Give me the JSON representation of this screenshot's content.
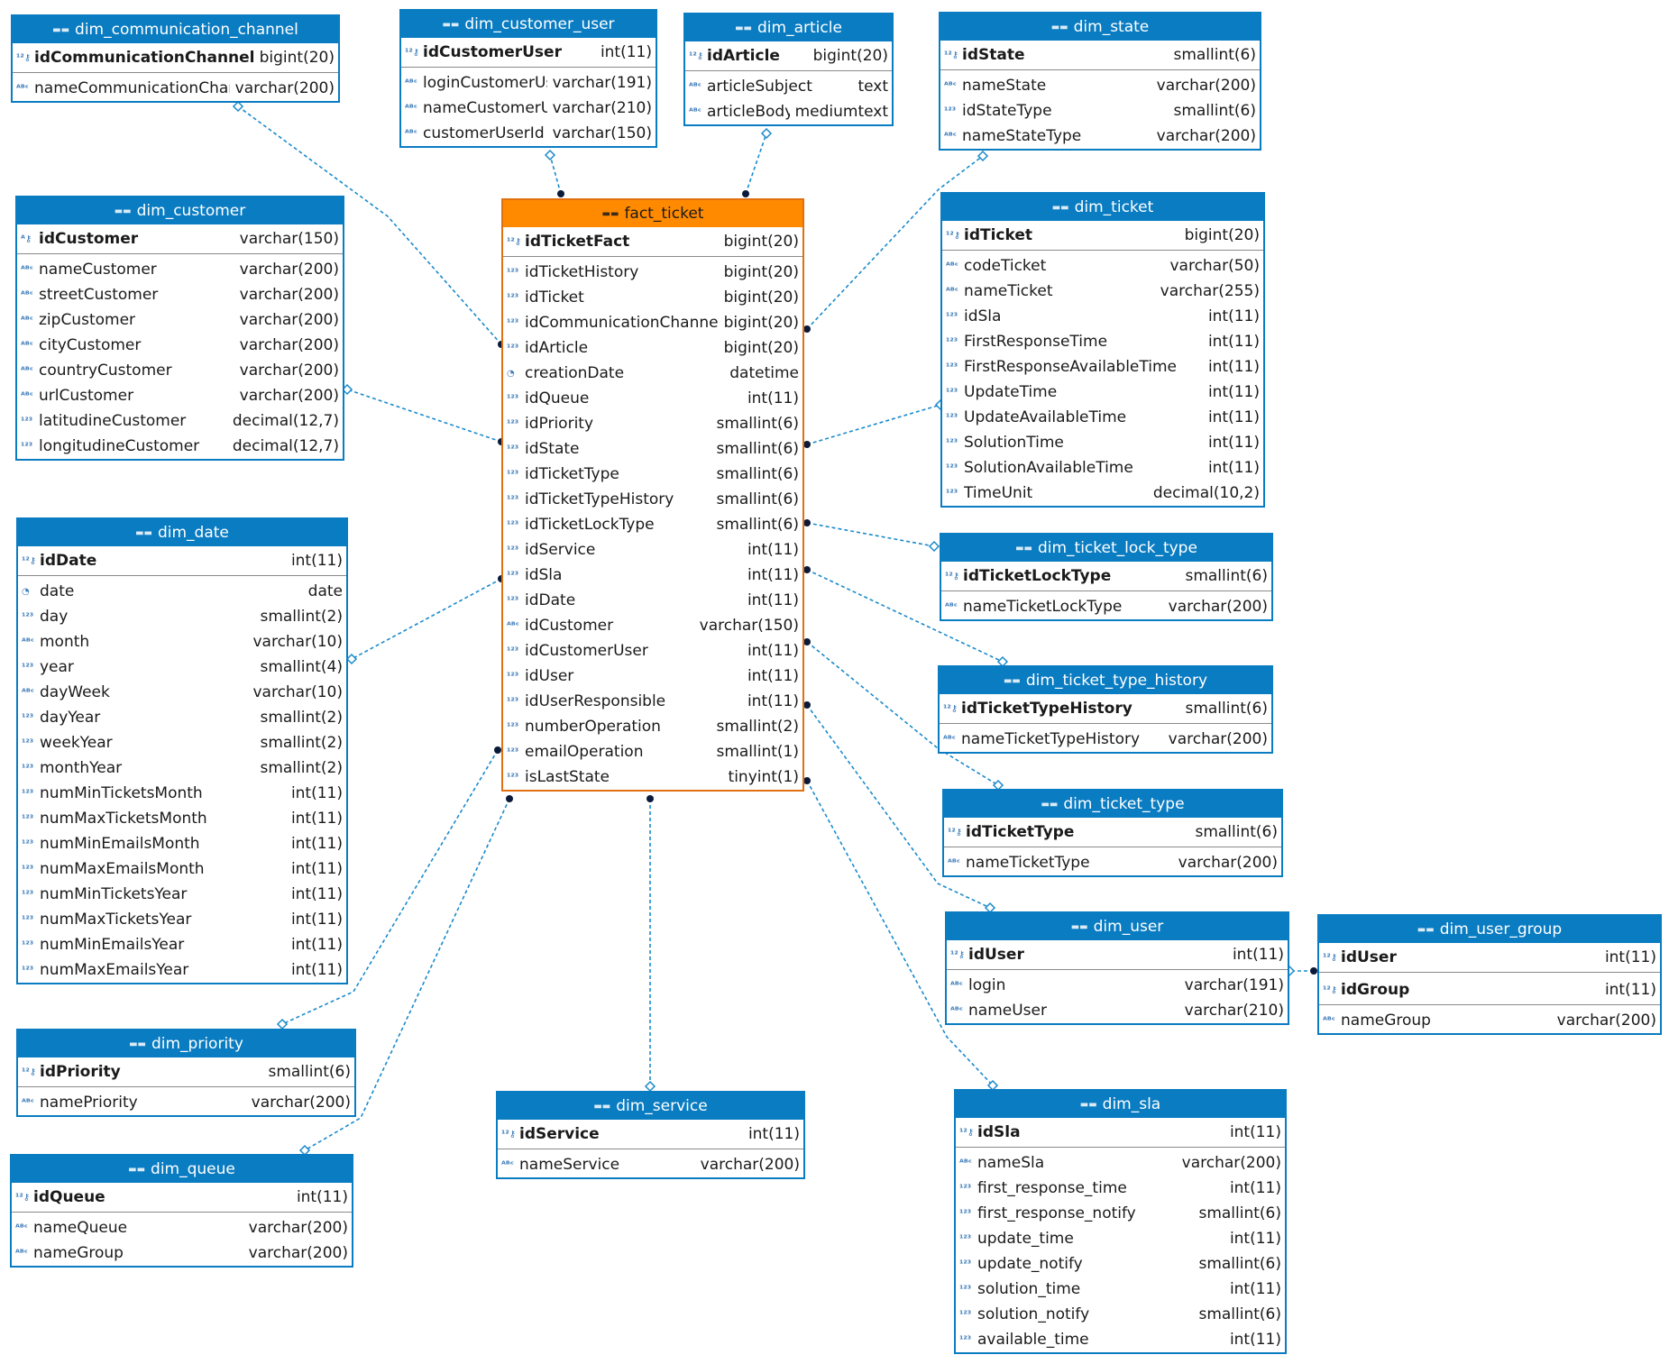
{
  "tables": {
    "dim_communication_channel": {
      "title": "dim_communication_channel",
      "columns": [
        {
          "name": "idCommunicationChannel",
          "type": "bigint(20)",
          "icon": "key-number-icon",
          "pk": true
        },
        {
          "name": "nameCommunicationChannel",
          "type": "varchar(200)",
          "icon": "text-icon"
        }
      ]
    },
    "dim_customer_user": {
      "title": "dim_customer_user",
      "columns": [
        {
          "name": "idCustomerUser",
          "type": "int(11)",
          "icon": "key-number-icon",
          "pk": true
        },
        {
          "name": "loginCustomerUser",
          "type": "varchar(191)",
          "icon": "text-icon"
        },
        {
          "name": "nameCustomerUser",
          "type": "varchar(210)",
          "icon": "text-icon"
        },
        {
          "name": "customerUserId",
          "type": "varchar(150)",
          "icon": "text-icon"
        }
      ]
    },
    "dim_article": {
      "title": "dim_article",
      "columns": [
        {
          "name": "idArticle",
          "type": "bigint(20)",
          "icon": "key-number-icon",
          "pk": true
        },
        {
          "name": "articleSubject",
          "type": "text",
          "icon": "text-icon"
        },
        {
          "name": "articleBody",
          "type": "mediumtext",
          "icon": "text-icon"
        }
      ]
    },
    "dim_state": {
      "title": "dim_state",
      "columns": [
        {
          "name": "idState",
          "type": "smallint(6)",
          "icon": "key-number-icon",
          "pk": true
        },
        {
          "name": "nameState",
          "type": "varchar(200)",
          "icon": "text-icon"
        },
        {
          "name": "idStateType",
          "type": "smallint(6)",
          "icon": "number-icon"
        },
        {
          "name": "nameStateType",
          "type": "varchar(200)",
          "icon": "text-icon"
        }
      ]
    },
    "dim_customer": {
      "title": "dim_customer",
      "columns": [
        {
          "name": "idCustomer",
          "type": "varchar(150)",
          "icon": "key-text-icon",
          "pk": true
        },
        {
          "name": "nameCustomer",
          "type": "varchar(200)",
          "icon": "text-icon"
        },
        {
          "name": "streetCustomer",
          "type": "varchar(200)",
          "icon": "text-icon"
        },
        {
          "name": "zipCustomer",
          "type": "varchar(200)",
          "icon": "text-icon"
        },
        {
          "name": "cityCustomer",
          "type": "varchar(200)",
          "icon": "text-icon"
        },
        {
          "name": "countryCustomer",
          "type": "varchar(200)",
          "icon": "text-icon"
        },
        {
          "name": "urlCustomer",
          "type": "varchar(200)",
          "icon": "text-icon"
        },
        {
          "name": "latitudineCustomer",
          "type": "decimal(12,7)",
          "icon": "number-icon"
        },
        {
          "name": "longitudineCustomer",
          "type": "decimal(12,7)",
          "icon": "number-icon"
        }
      ]
    },
    "fact_ticket": {
      "title": "fact_ticket",
      "columns": [
        {
          "name": "idTicketFact",
          "type": "bigint(20)",
          "icon": "key-number-icon",
          "pk": true
        },
        {
          "name": "idTicketHistory",
          "type": "bigint(20)",
          "icon": "number-icon"
        },
        {
          "name": "idTicket",
          "type": "bigint(20)",
          "icon": "number-icon"
        },
        {
          "name": "idCommunicationChannel",
          "type": "bigint(20)",
          "icon": "number-icon"
        },
        {
          "name": "idArticle",
          "type": "bigint(20)",
          "icon": "number-icon"
        },
        {
          "name": "creationDate",
          "type": "datetime",
          "icon": "clock-icon"
        },
        {
          "name": "idQueue",
          "type": "int(11)",
          "icon": "number-icon"
        },
        {
          "name": "idPriority",
          "type": "smallint(6)",
          "icon": "number-icon"
        },
        {
          "name": "idState",
          "type": "smallint(6)",
          "icon": "number-icon"
        },
        {
          "name": "idTicketType",
          "type": "smallint(6)",
          "icon": "number-icon"
        },
        {
          "name": "idTicketTypeHistory",
          "type": "smallint(6)",
          "icon": "number-icon"
        },
        {
          "name": "idTicketLockType",
          "type": "smallint(6)",
          "icon": "number-icon"
        },
        {
          "name": "idService",
          "type": "int(11)",
          "icon": "number-icon"
        },
        {
          "name": "idSla",
          "type": "int(11)",
          "icon": "number-icon"
        },
        {
          "name": "idDate",
          "type": "int(11)",
          "icon": "number-icon"
        },
        {
          "name": "idCustomer",
          "type": "varchar(150)",
          "icon": "text-icon"
        },
        {
          "name": "idCustomerUser",
          "type": "int(11)",
          "icon": "number-icon"
        },
        {
          "name": "idUser",
          "type": "int(11)",
          "icon": "number-icon"
        },
        {
          "name": "idUserResponsible",
          "type": "int(11)",
          "icon": "number-icon"
        },
        {
          "name": "numberOperation",
          "type": "smallint(2)",
          "icon": "number-icon"
        },
        {
          "name": "emailOperation",
          "type": "smallint(1)",
          "icon": "number-icon"
        },
        {
          "name": "isLastState",
          "type": "tinyint(1)",
          "icon": "number-icon"
        }
      ]
    },
    "dim_ticket": {
      "title": "dim_ticket",
      "columns": [
        {
          "name": "idTicket",
          "type": "bigint(20)",
          "icon": "key-number-icon",
          "pk": true
        },
        {
          "name": "codeTicket",
          "type": "varchar(50)",
          "icon": "text-icon"
        },
        {
          "name": "nameTicket",
          "type": "varchar(255)",
          "icon": "text-icon"
        },
        {
          "name": "idSla",
          "type": "int(11)",
          "icon": "number-icon"
        },
        {
          "name": "FirstResponseTime",
          "type": "int(11)",
          "icon": "number-icon"
        },
        {
          "name": "FirstResponseAvailableTime",
          "type": "int(11)",
          "icon": "number-icon"
        },
        {
          "name": "UpdateTime",
          "type": "int(11)",
          "icon": "number-icon"
        },
        {
          "name": "UpdateAvailableTime",
          "type": "int(11)",
          "icon": "number-icon"
        },
        {
          "name": "SolutionTime",
          "type": "int(11)",
          "icon": "number-icon"
        },
        {
          "name": "SolutionAvailableTime",
          "type": "int(11)",
          "icon": "number-icon"
        },
        {
          "name": "TimeUnit",
          "type": "decimal(10,2)",
          "icon": "number-icon"
        }
      ]
    },
    "dim_date": {
      "title": "dim_date",
      "columns": [
        {
          "name": "idDate",
          "type": "int(11)",
          "icon": "key-number-icon",
          "pk": true
        },
        {
          "name": "date",
          "type": "date",
          "icon": "clock-icon"
        },
        {
          "name": "day",
          "type": "smallint(2)",
          "icon": "number-icon"
        },
        {
          "name": "month",
          "type": "varchar(10)",
          "icon": "text-icon"
        },
        {
          "name": "year",
          "type": "smallint(4)",
          "icon": "number-icon"
        },
        {
          "name": "dayWeek",
          "type": "varchar(10)",
          "icon": "text-icon"
        },
        {
          "name": "dayYear",
          "type": "smallint(2)",
          "icon": "number-icon"
        },
        {
          "name": "weekYear",
          "type": "smallint(2)",
          "icon": "number-icon"
        },
        {
          "name": "monthYear",
          "type": "smallint(2)",
          "icon": "number-icon"
        },
        {
          "name": "numMinTicketsMonth",
          "type": "int(11)",
          "icon": "number-icon"
        },
        {
          "name": "numMaxTicketsMonth",
          "type": "int(11)",
          "icon": "number-icon"
        },
        {
          "name": "numMinEmailsMonth",
          "type": "int(11)",
          "icon": "number-icon"
        },
        {
          "name": "numMaxEmailsMonth",
          "type": "int(11)",
          "icon": "number-icon"
        },
        {
          "name": "numMinTicketsYear",
          "type": "int(11)",
          "icon": "number-icon"
        },
        {
          "name": "numMaxTicketsYear",
          "type": "int(11)",
          "icon": "number-icon"
        },
        {
          "name": "numMinEmailsYear",
          "type": "int(11)",
          "icon": "number-icon"
        },
        {
          "name": "numMaxEmailsYear",
          "type": "int(11)",
          "icon": "number-icon"
        }
      ]
    },
    "dim_ticket_lock_type": {
      "title": "dim_ticket_lock_type",
      "columns": [
        {
          "name": "idTicketLockType",
          "type": "smallint(6)",
          "icon": "key-number-icon",
          "pk": true
        },
        {
          "name": "nameTicketLockType",
          "type": "varchar(200)",
          "icon": "text-icon"
        }
      ]
    },
    "dim_ticket_type_history": {
      "title": "dim_ticket_type_history",
      "columns": [
        {
          "name": "idTicketTypeHistory",
          "type": "smallint(6)",
          "icon": "key-number-icon",
          "pk": true
        },
        {
          "name": "nameTicketTypeHistory",
          "type": "varchar(200)",
          "icon": "text-icon"
        }
      ]
    },
    "dim_ticket_type": {
      "title": "dim_ticket_type",
      "columns": [
        {
          "name": "idTicketType",
          "type": "smallint(6)",
          "icon": "key-number-icon",
          "pk": true
        },
        {
          "name": "nameTicketType",
          "type": "varchar(200)",
          "icon": "text-icon"
        }
      ]
    },
    "dim_user": {
      "title": "dim_user",
      "columns": [
        {
          "name": "idUser",
          "type": "int(11)",
          "icon": "key-number-icon",
          "pk": true
        },
        {
          "name": "login",
          "type": "varchar(191)",
          "icon": "text-icon"
        },
        {
          "name": "nameUser",
          "type": "varchar(210)",
          "icon": "text-icon"
        }
      ]
    },
    "dim_user_group": {
      "title": "dim_user_group",
      "columns": [
        {
          "name": "idUser",
          "type": "int(11)",
          "icon": "key-number-icon",
          "pk": true
        },
        {
          "name": "idGroup",
          "type": "int(11)",
          "icon": "key-number-icon",
          "pk": true
        },
        {
          "name": "nameGroup",
          "type": "varchar(200)",
          "icon": "text-icon"
        }
      ]
    },
    "dim_priority": {
      "title": "dim_priority",
      "columns": [
        {
          "name": "idPriority",
          "type": "smallint(6)",
          "icon": "key-number-icon",
          "pk": true
        },
        {
          "name": "namePriority",
          "type": "varchar(200)",
          "icon": "text-icon"
        }
      ]
    },
    "dim_service": {
      "title": "dim_service",
      "columns": [
        {
          "name": "idService",
          "type": "int(11)",
          "icon": "key-number-icon",
          "pk": true
        },
        {
          "name": "nameService",
          "type": "varchar(200)",
          "icon": "text-icon"
        }
      ]
    },
    "dim_queue": {
      "title": "dim_queue",
      "columns": [
        {
          "name": "idQueue",
          "type": "int(11)",
          "icon": "key-number-icon",
          "pk": true
        },
        {
          "name": "nameQueue",
          "type": "varchar(200)",
          "icon": "text-icon"
        },
        {
          "name": "nameGroup",
          "type": "varchar(200)",
          "icon": "text-icon"
        }
      ]
    },
    "dim_sla": {
      "title": "dim_sla",
      "columns": [
        {
          "name": "idSla",
          "type": "int(11)",
          "icon": "key-number-icon",
          "pk": true
        },
        {
          "name": "nameSla",
          "type": "varchar(200)",
          "icon": "text-icon"
        },
        {
          "name": "first_response_time",
          "type": "int(11)",
          "icon": "number-icon"
        },
        {
          "name": "first_response_notify",
          "type": "smallint(6)",
          "icon": "number-icon"
        },
        {
          "name": "update_time",
          "type": "int(11)",
          "icon": "number-icon"
        },
        {
          "name": "update_notify",
          "type": "smallint(6)",
          "icon": "number-icon"
        },
        {
          "name": "solution_time",
          "type": "int(11)",
          "icon": "number-icon"
        },
        {
          "name": "solution_notify",
          "type": "smallint(6)",
          "icon": "number-icon"
        },
        {
          "name": "available_time",
          "type": "int(11)",
          "icon": "number-icon"
        }
      ]
    }
  },
  "relationships": [
    {
      "from": "fact_ticket",
      "to": "dim_communication_channel"
    },
    {
      "from": "fact_ticket",
      "to": "dim_customer_user"
    },
    {
      "from": "fact_ticket",
      "to": "dim_article"
    },
    {
      "from": "fact_ticket",
      "to": "dim_state"
    },
    {
      "from": "fact_ticket",
      "to": "dim_customer"
    },
    {
      "from": "fact_ticket",
      "to": "dim_ticket"
    },
    {
      "from": "fact_ticket",
      "to": "dim_date"
    },
    {
      "from": "fact_ticket",
      "to": "dim_ticket_lock_type"
    },
    {
      "from": "fact_ticket",
      "to": "dim_ticket_type_history"
    },
    {
      "from": "fact_ticket",
      "to": "dim_ticket_type"
    },
    {
      "from": "fact_ticket",
      "to": "dim_user"
    },
    {
      "from": "fact_ticket",
      "to": "dim_sla"
    },
    {
      "from": "fact_ticket",
      "to": "dim_priority"
    },
    {
      "from": "fact_ticket",
      "to": "dim_queue"
    },
    {
      "from": "fact_ticket",
      "to": "dim_service"
    },
    {
      "from": "dim_user_group",
      "to": "dim_user"
    }
  ],
  "colors": {
    "header": "#0a7cc2",
    "fact_header": "#ff8a00",
    "link": "#1a8acb"
  }
}
